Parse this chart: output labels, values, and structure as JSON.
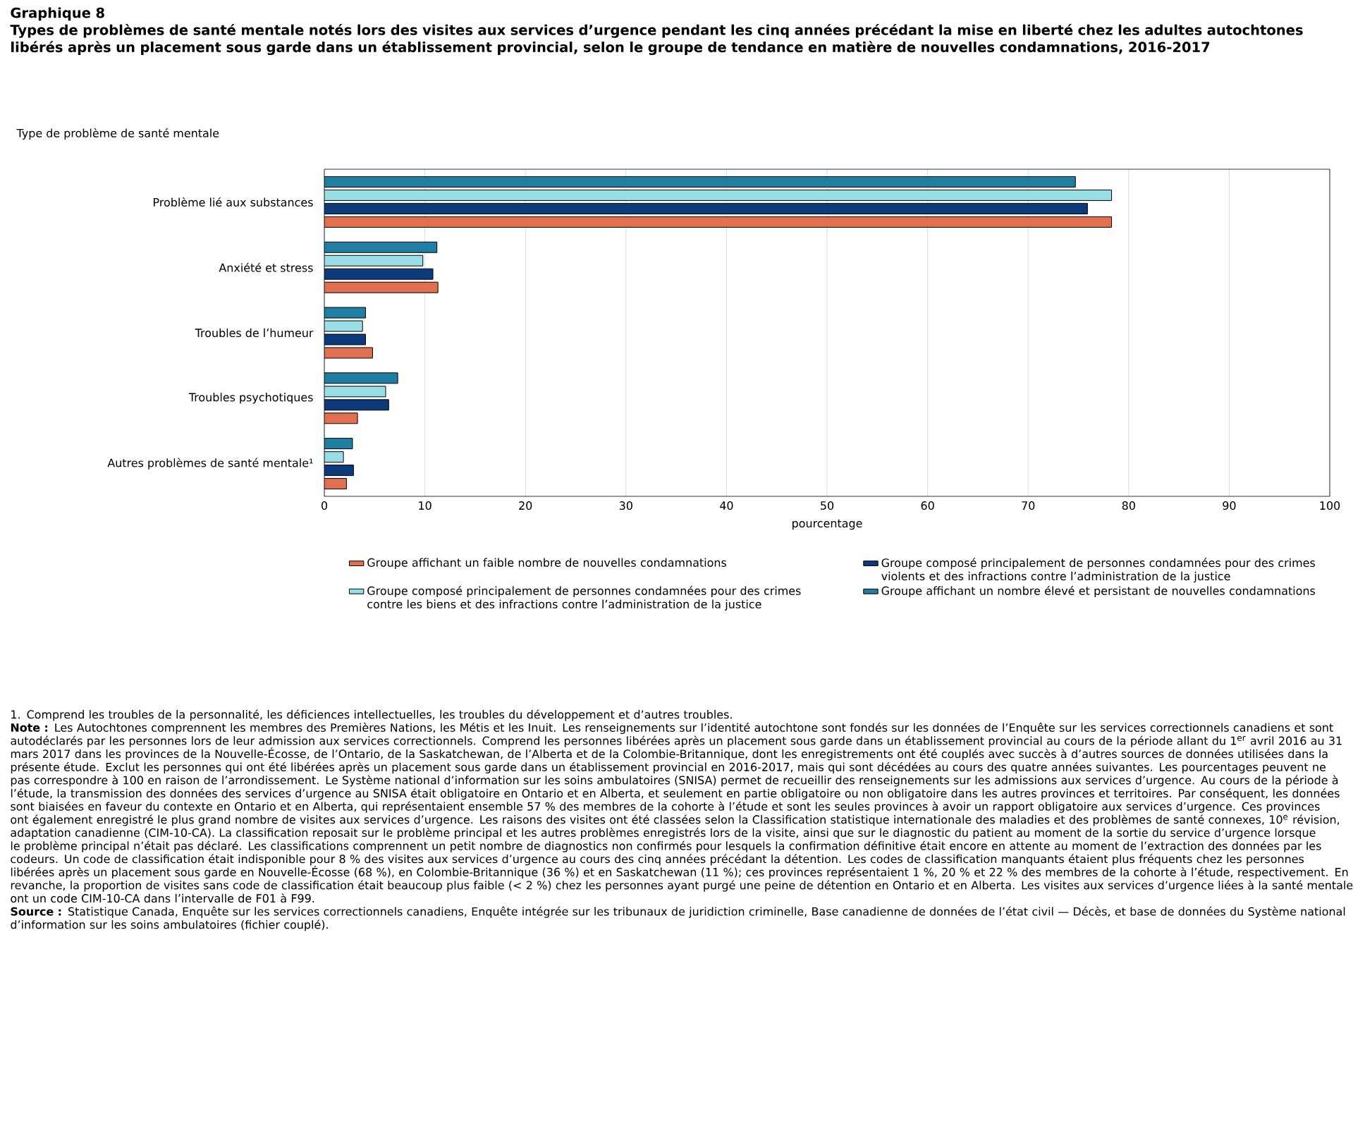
{
  "chart_data": {
    "type": "bar",
    "orientation": "horizontal",
    "title": "Graphique 8",
    "subtitle": "Types de problèmes de santé mentale notés lors des visites aux services d’urgence pendant les cinq années précédant la mise en liberté chez les adultes autochtones libérés après un placement sous garde dans un établissement provincial, selon le groupe de tendance en matière de nouvelles condamnations, 2016-2017",
    "ylabel": "Type de problème de santé mentale",
    "xlabel": "pourcentage",
    "categories": [
      "Problème lié aux substances",
      "Anxiété et stress",
      "Troubles de l’humeur",
      "Troubles psychotiques",
      "Autres problèmes de santé mentale¹"
    ],
    "series": [
      {
        "name": "Groupe affichant un faible nombre de nouvelles condamnations",
        "color": "#e07050",
        "values": [
          78.3,
          11.3,
          4.8,
          3.3,
          2.2
        ]
      },
      {
        "name": "Groupe composé principalement de personnes condamnées pour des crimes violents et des infractions contre l’administration de la justice",
        "color": "#0d3a7a",
        "values": [
          75.9,
          10.8,
          4.1,
          6.4,
          2.9
        ]
      },
      {
        "name": "Groupe composé principalement de personnes condamnées pour des crimes contre les biens et des infractions contre l’administration de la justice",
        "color": "#99dde6",
        "values": [
          78.3,
          9.8,
          3.8,
          6.1,
          1.9
        ]
      },
      {
        "name": "Groupe affichant un nombre élevé et persistant de nouvelles condamnations",
        "color": "#1f7ea1",
        "values": [
          74.7,
          11.2,
          4.1,
          7.3,
          2.8
        ]
      }
    ],
    "xlim": [
      0,
      100
    ],
    "xticks": [
      0,
      10,
      20,
      30,
      40,
      50,
      60,
      70,
      80,
      90,
      100
    ],
    "grid": "x",
    "legend": "bottom",
    "annotations": [
      "1. Comprend les troubles de la personnalité, les déficiences intellectuelles, les troubles du développement et d’autres troubles.",
      "**Note :** Les Autochtones comprennent les membres des Premières Nations, les Métis et les Inuit. Les renseignements sur l’identité autochtone sont fondés sur les données de l’Enquête sur les services correctionnels canadiens et sont autodéclarés par les personnes lors de leur admission aux services correctionnels. Comprend les personnes libérées après un placement sous garde dans un établissement provincial au cours de la période allant du 1$^{er}$ avril 2016 au 31 mars 2017 dans les provinces de la Nouvelle-Écosse, de l’Ontario, de la Saskatchewan, de l’Alberta et de la Colombie-Britannique, dont les enregistrements ont été couplés avec succès à d’autres sources de données utilisées dans la présente étude. Exclut les personnes qui ont été libérées après un placement sous garde dans un établissement provincial en 2016-2017, mais qui sont décédées au cours des quatre années suivantes. Les pourcentages peuvent ne pas correspondre à 100 en raison de l’arrondissement. Le Système national d’information sur les soins ambulatoires (SNISA) permet de recueillir des renseignements sur les admissions aux services d’urgence. Au cours de la période à l’étude, la transmission des données des services d’urgence au SNISA était obligatoire en Ontario et en Alberta, et seulement en partie obligatoire ou non obligatoire dans les autres provinces et territoires. Par conséquent, les données sont biaisées en faveur du contexte en Ontario et en Alberta, qui représentaient ensemble 57 % des membres de la cohorte à l’étude et sont les seules provinces à avoir un rapport obligatoire aux services d’urgence. Ces provinces ont également enregistré le plus grand nombre de visites aux services d’urgence. Les raisons des visites ont été classées selon la Classification statistique internationale des maladies et des problèmes de santé connexes, 10$^{e}$ révision, adaptation canadienne (CIM-10-CA). La classification reposait sur le problème principal et les autres problèmes enregistrés lors de la visite, ainsi que sur le diagnostic du patient au moment de la sortie du service d’urgence lorsque le problème principal n’était pas déclaré. Les classifications comprennent un petit nombre de diagnostics non confirmés pour lesquels la confirmation définitive était encore en attente au moment de l’extraction des données par les codeurs. Un code de classification était indisponible pour 8 % des visites aux services d’urgence au cours des cinq années précédant la détention. Les codes de classification manquants étaient plus fréquents chez les personnes libérées après un placement sous garde en Nouvelle-Écosse (68 %), en Colombie-Britannique (36 %) et en Saskatchewan (11 %); ces provinces représentaient 1 %, 20 % et 22 % des membres de la cohorte à l’étude, respectivement. En revanche, la proportion de visites sans code de classification était beaucoup plus faible (< 2 %) chez les personnes ayant purgé une peine de détention en Ontario et en Alberta. Les visites aux services d’urgence liées à la santé mentale ont un code CIM-10-CA dans l’intervalle de F01 à F99.",
      "**Source :** Statistique Canada, Enquête sur les services correctionnels canadiens, Enquête intégrée sur les tribunaux de juridiction criminelle, Base canadienne de données de l’état civil — Décès, et base de données du Système national d’information sur les soins ambulatoires (fichier couplé)."
    ]
  }
}
